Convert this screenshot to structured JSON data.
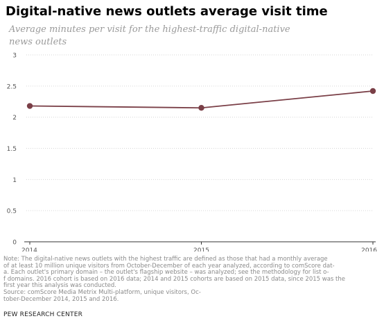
{
  "title": "Digital-native news outlets average visit time",
  "subtitle": "Average minutes per visit for the highest-traffic digital-native news outlets",
  "note": "Note: The digital-native news outlets with the highest traffic are defined as those that had a monthly average\n of at least 10 million unique visitors from October-December of each year analyzed, according to comScore dat-\na. Each outlet's primary domain – the outlet's flagship website – was analyzed; see the methodology for list o-\nf domains. 2016 cohort is based on 2016 data; 2014 and 2015 cohorts are based on 2015 data, since 2015 was the\n first year this analysis was conducted.\n Source: comScore Media Metrix Multi-platform, unique visitors, Oc-\ntober-December 2014, 2015 and 2016.",
  "source": "PEW RESEARCH CENTER",
  "colors": {
    "series": "#7a3f47",
    "grid": "#d6d6d6",
    "axis": "#333333",
    "tick_text": "#555555"
  },
  "chart_data": {
    "type": "line",
    "title": "Digital-native news outlets average visit time",
    "subtitle": "Average minutes per visit for the highest-traffic digital-native news outlets",
    "x": [
      "2014",
      "2015",
      "2016"
    ],
    "series": [
      {
        "values": [
          2.18,
          2.15,
          2.42
        ]
      }
    ],
    "yticks": [
      "0",
      "0.5",
      "1",
      "1.5",
      "2",
      "2.5",
      "3"
    ],
    "ylim": [
      0,
      3
    ],
    "grid": true,
    "gridstyle": "dotted",
    "xlabel": "",
    "ylabel": ""
  }
}
